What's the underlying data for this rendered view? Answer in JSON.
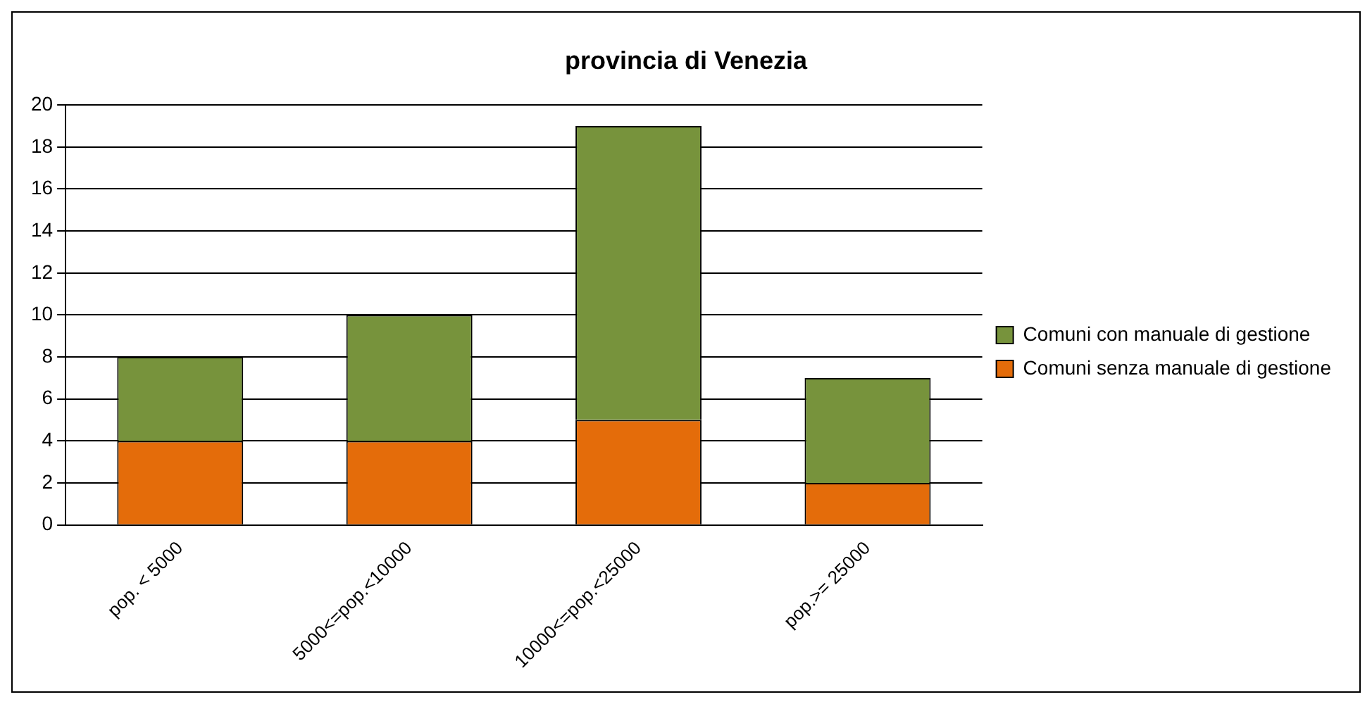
{
  "chart_data": {
    "type": "bar",
    "title": "provincia di Venezia",
    "categories": [
      "pop. < 5000",
      "5000<=pop.<10000",
      "10000<=pop.<25000",
      "pop.>= 25000"
    ],
    "series": [
      {
        "name": "Comuni senza manuale di gestione",
        "color": "#e46c0a",
        "values": [
          4,
          4,
          5,
          2
        ]
      },
      {
        "name": "Comuni con manuale di gestione",
        "color": "#77933c",
        "values": [
          4,
          6,
          14,
          5
        ]
      }
    ],
    "stacked": true,
    "ylim": [
      0,
      20
    ],
    "yticks": [
      0,
      2,
      4,
      6,
      8,
      10,
      12,
      14,
      16,
      18,
      20
    ],
    "grid": "y",
    "legend": "right"
  }
}
